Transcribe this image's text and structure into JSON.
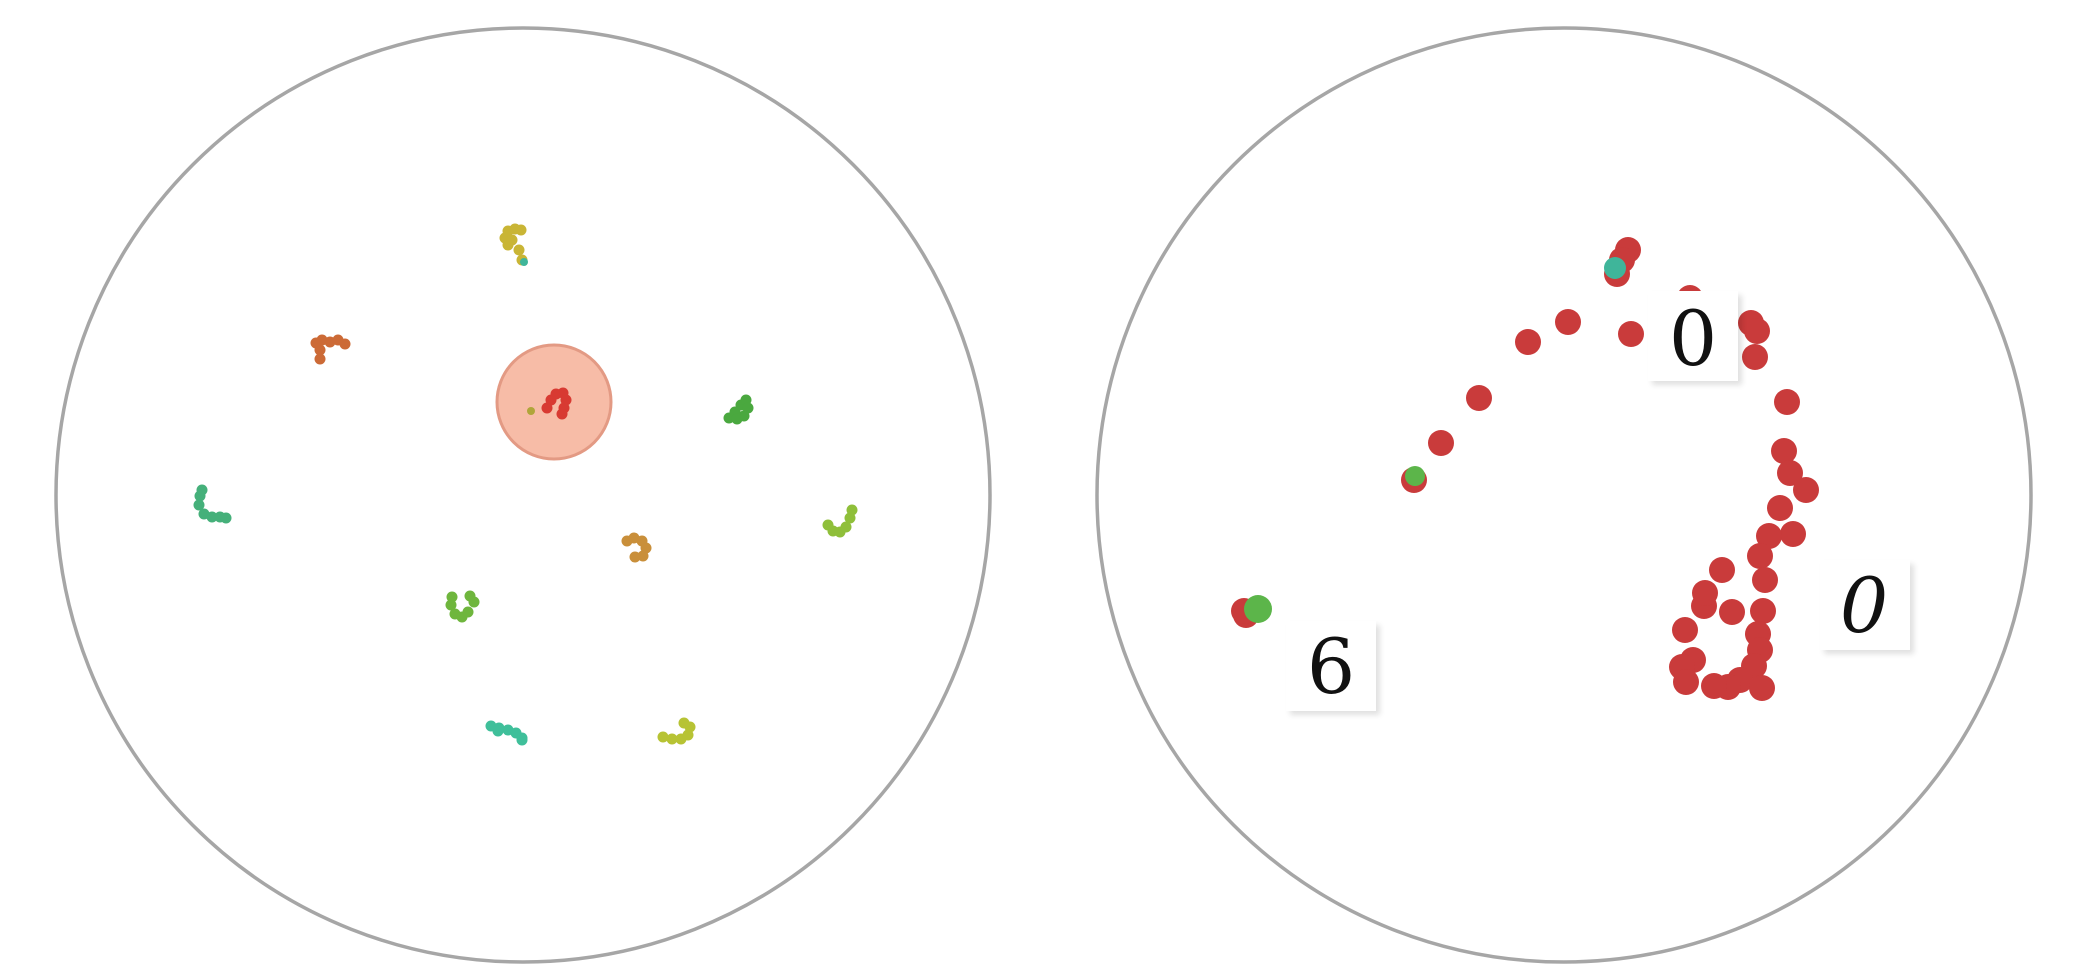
{
  "colors": {
    "disk_outline": "#a6a6a6",
    "focus_highlight": "#f4a58a",
    "red": "#cc3b3b",
    "green": "#5cb54a",
    "teal": "#3fb59a",
    "yellow": "#c9b535",
    "orange": "#c96d3a",
    "olive": "#a8b83a"
  },
  "left_panel": {
    "clusters": [
      {
        "name": "cluster-center-red",
        "color": "#d83a32",
        "highlighted": true
      },
      {
        "name": "cluster-top-yellow",
        "color": "#c9b535"
      },
      {
        "name": "cluster-upper-left-orange",
        "color": "#cc6a36"
      },
      {
        "name": "cluster-right-green",
        "color": "#4aa83f"
      },
      {
        "name": "cluster-left-teal",
        "color": "#45b07a"
      },
      {
        "name": "cluster-far-right-olive",
        "color": "#8fbf3a"
      },
      {
        "name": "cluster-middle-ochre",
        "color": "#c98f3a"
      },
      {
        "name": "cluster-lower-left-green",
        "color": "#6fb63d"
      },
      {
        "name": "cluster-bottom-teal",
        "color": "#3fbf9a"
      },
      {
        "name": "cluster-bottom-right-yellow",
        "color": "#b7c334"
      }
    ]
  },
  "right_panel": {
    "point_color": "#c93b3b",
    "accent_color": "#5cb54a",
    "thumbnails": [
      {
        "name": "digit-thumbnail-top",
        "digit": "0"
      },
      {
        "name": "digit-thumbnail-right",
        "digit": "0"
      },
      {
        "name": "digit-thumbnail-left",
        "digit": "6"
      }
    ]
  }
}
